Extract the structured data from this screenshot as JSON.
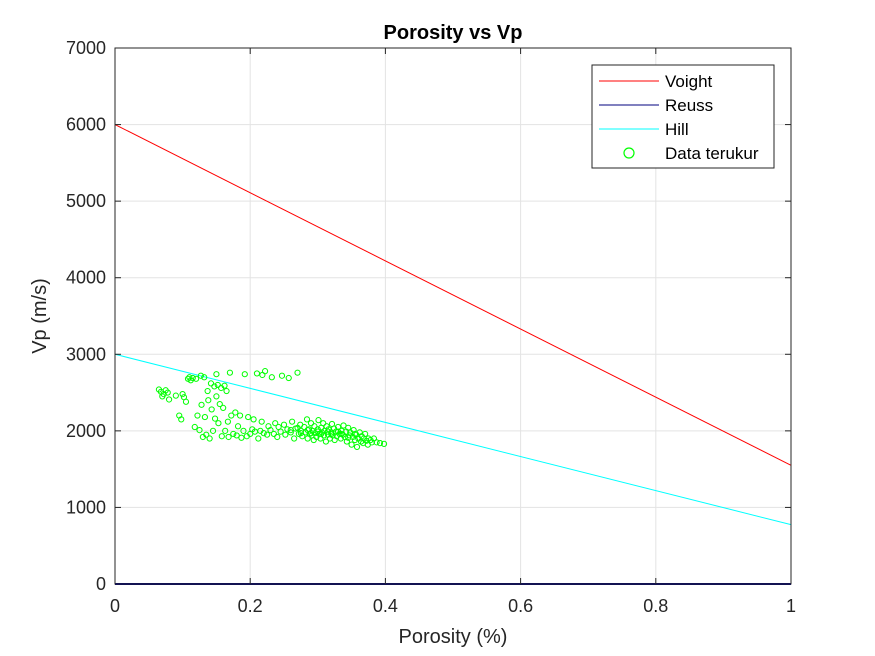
{
  "chart_data": {
    "type": "line",
    "title": "Porosity vs Vp",
    "xlabel": "Porosity (%)",
    "ylabel": "Vp (m/s)",
    "xlim": [
      0,
      1
    ],
    "ylim": [
      0,
      7000
    ],
    "xticks": [
      0,
      0.2,
      0.4,
      0.6,
      0.8,
      1
    ],
    "xtick_labels": [
      "0",
      "0.2",
      "0.4",
      "0.6",
      "0.8",
      "1"
    ],
    "yticks": [
      0,
      1000,
      2000,
      3000,
      4000,
      5000,
      6000,
      7000
    ],
    "ytick_labels": [
      "0",
      "1000",
      "2000",
      "3000",
      "4000",
      "5000",
      "6000",
      "7000"
    ],
    "grid": true,
    "legend_position": "top-right",
    "series": [
      {
        "name": "Voight",
        "kind": "line",
        "color": "#ff0000",
        "x": [
          0,
          1
        ],
        "y": [
          6000,
          1550
        ]
      },
      {
        "name": "Reuss",
        "kind": "line",
        "color": "#00007f",
        "x": [
          0,
          1
        ],
        "y": [
          0,
          0
        ]
      },
      {
        "name": "Hill",
        "kind": "line",
        "color": "#00ffff",
        "x": [
          0,
          1
        ],
        "y": [
          3000,
          775
        ]
      },
      {
        "name": "Data terukur",
        "kind": "scatter",
        "color": "#00ff00",
        "points": [
          [
            0.065,
            2540
          ],
          [
            0.068,
            2510
          ],
          [
            0.07,
            2450
          ],
          [
            0.072,
            2480
          ],
          [
            0.075,
            2530
          ],
          [
            0.078,
            2500
          ],
          [
            0.08,
            2410
          ],
          [
            0.09,
            2460
          ],
          [
            0.095,
            2200
          ],
          [
            0.098,
            2150
          ],
          [
            0.1,
            2480
          ],
          [
            0.102,
            2440
          ],
          [
            0.105,
            2380
          ],
          [
            0.108,
            2680
          ],
          [
            0.11,
            2700
          ],
          [
            0.112,
            2660
          ],
          [
            0.115,
            2690
          ],
          [
            0.118,
            2050
          ],
          [
            0.12,
            2680
          ],
          [
            0.122,
            2200
          ],
          [
            0.125,
            2010
          ],
          [
            0.127,
            2720
          ],
          [
            0.128,
            2340
          ],
          [
            0.13,
            1920
          ],
          [
            0.132,
            2700
          ],
          [
            0.133,
            2180
          ],
          [
            0.135,
            1950
          ],
          [
            0.137,
            2520
          ],
          [
            0.138,
            2400
          ],
          [
            0.14,
            1900
          ],
          [
            0.142,
            2620
          ],
          [
            0.143,
            2280
          ],
          [
            0.145,
            2000
          ],
          [
            0.147,
            2580
          ],
          [
            0.148,
            2160
          ],
          [
            0.15,
            2740
          ],
          [
            0.15,
            2450
          ],
          [
            0.152,
            2600
          ],
          [
            0.153,
            2100
          ],
          [
            0.155,
            2350
          ],
          [
            0.157,
            2560
          ],
          [
            0.158,
            1930
          ],
          [
            0.16,
            2300
          ],
          [
            0.162,
            2590
          ],
          [
            0.163,
            2000
          ],
          [
            0.165,
            2520
          ],
          [
            0.167,
            2120
          ],
          [
            0.168,
            1920
          ],
          [
            0.17,
            2760
          ],
          [
            0.172,
            2200
          ],
          [
            0.175,
            1960
          ],
          [
            0.178,
            2240
          ],
          [
            0.18,
            1940
          ],
          [
            0.182,
            2060
          ],
          [
            0.185,
            2200
          ],
          [
            0.187,
            1910
          ],
          [
            0.19,
            2000
          ],
          [
            0.192,
            2740
          ],
          [
            0.195,
            1930
          ],
          [
            0.197,
            2180
          ],
          [
            0.2,
            1960
          ],
          [
            0.203,
            2020
          ],
          [
            0.205,
            2150
          ],
          [
            0.207,
            1990
          ],
          [
            0.21,
            2750
          ],
          [
            0.212,
            1900
          ],
          [
            0.215,
            2000
          ],
          [
            0.217,
            2120
          ],
          [
            0.218,
            2730
          ],
          [
            0.22,
            1970
          ],
          [
            0.222,
            2780
          ],
          [
            0.225,
            1950
          ],
          [
            0.227,
            2060
          ],
          [
            0.23,
            2010
          ],
          [
            0.232,
            2700
          ],
          [
            0.235,
            1960
          ],
          [
            0.237,
            2100
          ],
          [
            0.24,
            1920
          ],
          [
            0.242,
            2050
          ],
          [
            0.245,
            1990
          ],
          [
            0.247,
            2720
          ],
          [
            0.25,
            2080
          ],
          [
            0.252,
            1950
          ],
          [
            0.255,
            2020
          ],
          [
            0.257,
            2690
          ],
          [
            0.26,
            1980
          ],
          [
            0.262,
            2120
          ],
          [
            0.265,
            1900
          ],
          [
            0.267,
            2030
          ],
          [
            0.27,
            2760
          ],
          [
            0.272,
            1960
          ],
          [
            0.274,
            2080
          ],
          [
            0.275,
            2000
          ],
          [
            0.277,
            1930
          ],
          [
            0.28,
            2050
          ],
          [
            0.282,
            1980
          ],
          [
            0.284,
            2150
          ],
          [
            0.285,
            1900
          ],
          [
            0.287,
            2020
          ],
          [
            0.288,
            1960
          ],
          [
            0.29,
            2100
          ],
          [
            0.291,
            1940
          ],
          [
            0.292,
            2000
          ],
          [
            0.294,
            1880
          ],
          [
            0.295,
            2060
          ],
          [
            0.296,
            1970
          ],
          [
            0.298,
            1920
          ],
          [
            0.3,
            2020
          ],
          [
            0.301,
            2140
          ],
          [
            0.302,
            1960
          ],
          [
            0.304,
            1900
          ],
          [
            0.305,
            2040
          ],
          [
            0.306,
            1980
          ],
          [
            0.308,
            2100
          ],
          [
            0.309,
            1940
          ],
          [
            0.31,
            2000
          ],
          [
            0.312,
            1860
          ],
          [
            0.313,
            2060
          ],
          [
            0.315,
            1950
          ],
          [
            0.316,
            2020
          ],
          [
            0.318,
            1900
          ],
          [
            0.32,
            1980
          ],
          [
            0.321,
            2090
          ],
          [
            0.322,
            1940
          ],
          [
            0.324,
            2030
          ],
          [
            0.325,
            1880
          ],
          [
            0.327,
            1990
          ],
          [
            0.328,
            1930
          ],
          [
            0.33,
            2050
          ],
          [
            0.332,
            1960
          ],
          [
            0.334,
            1900
          ],
          [
            0.335,
            2000
          ],
          [
            0.337,
            1950
          ],
          [
            0.338,
            2070
          ],
          [
            0.34,
            1920
          ],
          [
            0.342,
            1990
          ],
          [
            0.343,
            1860
          ],
          [
            0.345,
            2040
          ],
          [
            0.347,
            1940
          ],
          [
            0.348,
            1980
          ],
          [
            0.35,
            1820
          ],
          [
            0.352,
            1920
          ],
          [
            0.353,
            2010
          ],
          [
            0.355,
            1880
          ],
          [
            0.357,
            1950
          ],
          [
            0.358,
            1790
          ],
          [
            0.36,
            1900
          ],
          [
            0.362,
            1980
          ],
          [
            0.364,
            1860
          ],
          [
            0.365,
            1930
          ],
          [
            0.367,
            1840
          ],
          [
            0.368,
            1900
          ],
          [
            0.37,
            1960
          ],
          [
            0.372,
            1870
          ],
          [
            0.374,
            1820
          ],
          [
            0.375,
            1900
          ],
          [
            0.378,
            1880
          ],
          [
            0.38,
            1850
          ],
          [
            0.383,
            1900
          ],
          [
            0.387,
            1850
          ],
          [
            0.392,
            1840
          ],
          [
            0.398,
            1830
          ],
          [
            0.27,
            2040
          ],
          [
            0.285,
            2010
          ],
          [
            0.3,
            1990
          ],
          [
            0.315,
            1990
          ],
          [
            0.33,
            1990
          ],
          [
            0.26,
            2010
          ],
          [
            0.275,
            1970
          ],
          [
            0.29,
            1970
          ],
          [
            0.305,
            1960
          ],
          [
            0.32,
            1960
          ],
          [
            0.335,
            1960
          ],
          [
            0.345,
            1910
          ],
          [
            0.355,
            1960
          ]
        ]
      }
    ]
  }
}
